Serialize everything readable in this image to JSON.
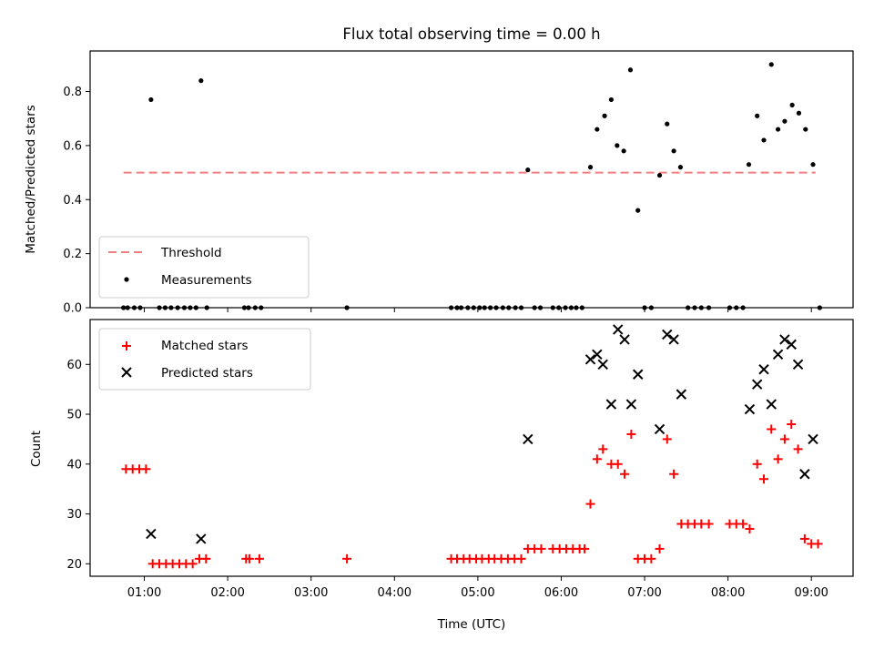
{
  "chart_data": [
    {
      "type": "line+scatter",
      "title": "Flux total observing time = 0.00 h",
      "xlabel": "",
      "ylabel": "Matched/Predicted stars",
      "ylim": [
        0,
        0.95
      ],
      "xlim": [
        0.35,
        9.5
      ],
      "yticks": [
        0.0,
        0.2,
        0.4,
        0.6,
        0.8
      ],
      "yticklabels": [
        "0.0",
        "0.2",
        "0.4",
        "0.6",
        "0.8"
      ],
      "xticks": [
        1,
        2,
        3,
        4,
        5,
        6,
        7,
        8,
        9
      ],
      "show_xticklabels": false,
      "grid": false,
      "legend_position": "lower-left",
      "series": [
        {
          "name": "Threshold",
          "kind": "dashed-line",
          "color": "#f08080",
          "x": [
            0.75,
            9.05
          ],
          "y": [
            0.5,
            0.5
          ]
        },
        {
          "name": "Measurements",
          "kind": "dots",
          "color": "#000000",
          "points": [
            [
              0.75,
              0
            ],
            [
              0.8,
              0
            ],
            [
              0.88,
              0
            ],
            [
              0.95,
              0
            ],
            [
              1.08,
              0.77
            ],
            [
              1.18,
              0
            ],
            [
              1.25,
              0
            ],
            [
              1.32,
              0
            ],
            [
              1.4,
              0
            ],
            [
              1.48,
              0
            ],
            [
              1.55,
              0
            ],
            [
              1.62,
              0
            ],
            [
              1.68,
              0.84
            ],
            [
              1.75,
              0
            ],
            [
              2.2,
              0
            ],
            [
              2.25,
              0
            ],
            [
              2.33,
              0
            ],
            [
              2.4,
              0
            ],
            [
              3.43,
              0
            ],
            [
              4.68,
              0
            ],
            [
              4.75,
              0
            ],
            [
              4.8,
              0
            ],
            [
              4.88,
              0
            ],
            [
              4.95,
              0
            ],
            [
              5.02,
              0
            ],
            [
              5.08,
              0
            ],
            [
              5.15,
              0
            ],
            [
              5.22,
              0
            ],
            [
              5.3,
              0
            ],
            [
              5.37,
              0
            ],
            [
              5.45,
              0
            ],
            [
              5.52,
              0
            ],
            [
              5.6,
              0.51
            ],
            [
              5.68,
              0
            ],
            [
              5.75,
              0
            ],
            [
              5.9,
              0
            ],
            [
              5.97,
              0
            ],
            [
              6.05,
              0
            ],
            [
              6.12,
              0
            ],
            [
              6.18,
              0
            ],
            [
              6.25,
              0
            ],
            [
              6.35,
              0.52
            ],
            [
              6.43,
              0.66
            ],
            [
              6.52,
              0.71
            ],
            [
              6.6,
              0.77
            ],
            [
              6.67,
              0.6
            ],
            [
              6.75,
              0.58
            ],
            [
              6.83,
              0.88
            ],
            [
              6.92,
              0.36
            ],
            [
              7.0,
              0
            ],
            [
              7.08,
              0
            ],
            [
              7.18,
              0.49
            ],
            [
              7.27,
              0.68
            ],
            [
              7.35,
              0.58
            ],
            [
              7.43,
              0.52
            ],
            [
              7.52,
              0
            ],
            [
              7.6,
              0
            ],
            [
              7.68,
              0
            ],
            [
              7.77,
              0
            ],
            [
              8.02,
              0
            ],
            [
              8.1,
              0
            ],
            [
              8.18,
              0
            ],
            [
              8.25,
              0.53
            ],
            [
              8.35,
              0.71
            ],
            [
              8.43,
              0.62
            ],
            [
              8.52,
              0.9
            ],
            [
              8.6,
              0.66
            ],
            [
              8.68,
              0.69
            ],
            [
              8.77,
              0.75
            ],
            [
              8.85,
              0.72
            ],
            [
              8.93,
              0.66
            ],
            [
              9.02,
              0.53
            ],
            [
              9.1,
              0
            ]
          ]
        }
      ]
    },
    {
      "type": "scatter",
      "title": "",
      "xlabel": "Time (UTC)",
      "ylabel": "Count",
      "ylim": [
        17.5,
        69
      ],
      "xlim": [
        0.35,
        9.5
      ],
      "yticks": [
        20,
        30,
        40,
        50,
        60
      ],
      "yticklabels": [
        "20",
        "30",
        "40",
        "50",
        "60"
      ],
      "xticks": [
        1,
        2,
        3,
        4,
        5,
        6,
        7,
        8,
        9
      ],
      "xticklabels": [
        "01:00",
        "02:00",
        "03:00",
        "04:00",
        "05:00",
        "06:00",
        "07:00",
        "08:00",
        "09:00"
      ],
      "grid": false,
      "legend_position": "upper-left",
      "series": [
        {
          "name": "Matched stars",
          "marker": "plus",
          "color": "#ff0000",
          "points": [
            [
              0.78,
              39
            ],
            [
              0.86,
              39
            ],
            [
              0.94,
              39
            ],
            [
              1.02,
              39
            ],
            [
              1.1,
              20
            ],
            [
              1.18,
              20
            ],
            [
              1.26,
              20
            ],
            [
              1.34,
              20
            ],
            [
              1.42,
              20
            ],
            [
              1.5,
              20
            ],
            [
              1.58,
              20
            ],
            [
              1.66,
              21
            ],
            [
              1.74,
              21
            ],
            [
              2.22,
              21
            ],
            [
              2.26,
              21
            ],
            [
              2.38,
              21
            ],
            [
              3.43,
              21
            ],
            [
              4.68,
              21
            ],
            [
              4.75,
              21
            ],
            [
              4.83,
              21
            ],
            [
              4.9,
              21
            ],
            [
              4.98,
              21
            ],
            [
              5.05,
              21
            ],
            [
              5.13,
              21
            ],
            [
              5.2,
              21
            ],
            [
              5.28,
              21
            ],
            [
              5.36,
              21
            ],
            [
              5.44,
              21
            ],
            [
              5.52,
              21
            ],
            [
              5.6,
              23
            ],
            [
              5.68,
              23
            ],
            [
              5.76,
              23
            ],
            [
              5.9,
              23
            ],
            [
              5.98,
              23
            ],
            [
              6.06,
              23
            ],
            [
              6.14,
              23
            ],
            [
              6.22,
              23
            ],
            [
              6.28,
              23
            ],
            [
              6.35,
              32
            ],
            [
              6.43,
              41
            ],
            [
              6.5,
              43
            ],
            [
              6.6,
              40
            ],
            [
              6.68,
              40
            ],
            [
              6.76,
              38
            ],
            [
              6.84,
              46
            ],
            [
              6.92,
              21
            ],
            [
              7.0,
              21
            ],
            [
              7.08,
              21
            ],
            [
              7.18,
              23
            ],
            [
              7.27,
              45
            ],
            [
              7.35,
              38
            ],
            [
              7.44,
              28
            ],
            [
              7.52,
              28
            ],
            [
              7.6,
              28
            ],
            [
              7.68,
              28
            ],
            [
              7.77,
              28
            ],
            [
              8.02,
              28
            ],
            [
              8.1,
              28
            ],
            [
              8.18,
              28
            ],
            [
              8.26,
              27
            ],
            [
              8.35,
              40
            ],
            [
              8.43,
              37
            ],
            [
              8.52,
              47
            ],
            [
              8.6,
              41
            ],
            [
              8.68,
              45
            ],
            [
              8.76,
              48
            ],
            [
              8.84,
              43
            ],
            [
              8.92,
              25
            ],
            [
              9.0,
              24
            ],
            [
              9.08,
              24
            ]
          ]
        },
        {
          "name": "Predicted stars",
          "marker": "x",
          "color": "#000000",
          "points": [
            [
              1.08,
              26
            ],
            [
              1.68,
              25
            ],
            [
              5.6,
              45
            ],
            [
              6.35,
              61
            ],
            [
              6.43,
              62
            ],
            [
              6.5,
              60
            ],
            [
              6.6,
              52
            ],
            [
              6.68,
              67
            ],
            [
              6.76,
              65
            ],
            [
              6.84,
              52
            ],
            [
              6.92,
              58
            ],
            [
              7.18,
              47
            ],
            [
              7.27,
              66
            ],
            [
              7.35,
              65
            ],
            [
              7.44,
              54
            ],
            [
              8.26,
              51
            ],
            [
              8.35,
              56
            ],
            [
              8.43,
              59
            ],
            [
              8.52,
              52
            ],
            [
              8.6,
              62
            ],
            [
              8.68,
              65
            ],
            [
              8.76,
              64
            ],
            [
              8.84,
              60
            ],
            [
              8.92,
              38
            ],
            [
              9.02,
              45
            ]
          ]
        }
      ]
    }
  ]
}
